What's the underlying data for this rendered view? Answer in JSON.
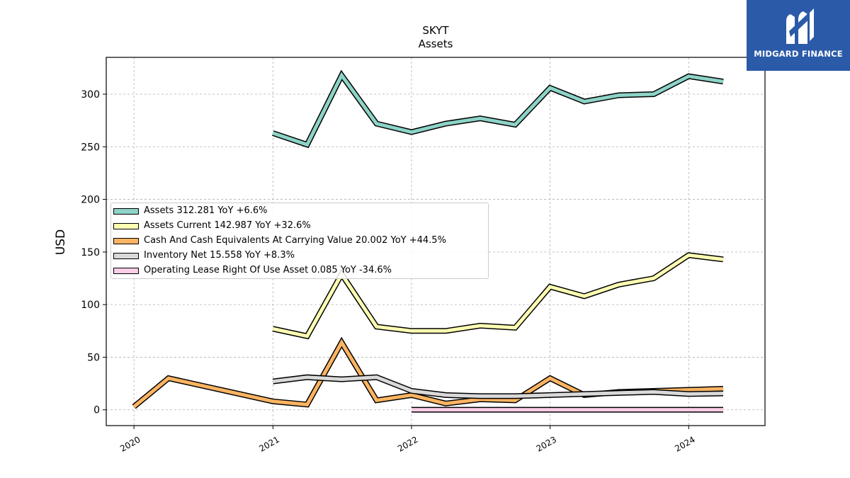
{
  "brand": {
    "name": "MIDGARD FINANCE",
    "logo_icon": "midgard-m-logo-icon",
    "color": "#2b5aa8"
  },
  "chart_data": {
    "type": "line",
    "title": "SKYT",
    "subtitle": "Assets",
    "xlabel": "",
    "ylabel": "USD",
    "x_ticks": [
      "2020",
      "2021",
      "2022",
      "2023",
      "2024"
    ],
    "y_ticks": [
      0,
      50,
      100,
      150,
      200,
      250,
      300
    ],
    "xlim": [
      "2019-10-20",
      "2024-07-20"
    ],
    "ylim": [
      -15,
      335
    ],
    "grid": true,
    "legend_position": "center-left",
    "series": [
      {
        "name": "Assets",
        "legend": "Assets  312.281 YoY +6.6%",
        "color": "#8dd3c7",
        "points": [
          [
            "2021-01-01",
            263
          ],
          [
            "2021-04-01",
            252
          ],
          [
            "2021-07-01",
            318
          ],
          [
            "2021-10-01",
            272
          ],
          [
            "2022-01-01",
            264
          ],
          [
            "2022-04-01",
            272
          ],
          [
            "2022-07-01",
            277
          ],
          [
            "2022-10-01",
            271
          ],
          [
            "2023-01-01",
            306
          ],
          [
            "2023-04-01",
            293
          ],
          [
            "2023-07-01",
            299
          ],
          [
            "2023-10-01",
            300
          ],
          [
            "2024-01-01",
            317
          ],
          [
            "2024-04-01",
            312
          ]
        ]
      },
      {
        "name": "Assets Current",
        "legend": "Assets Current  142.987 YoY +32.6%",
        "color": "#ffffb3",
        "points": [
          [
            "2021-01-01",
            77
          ],
          [
            "2021-04-01",
            70
          ],
          [
            "2021-07-01",
            129
          ],
          [
            "2021-10-01",
            79
          ],
          [
            "2022-01-01",
            75
          ],
          [
            "2022-04-01",
            75
          ],
          [
            "2022-07-01",
            80
          ],
          [
            "2022-10-01",
            78
          ],
          [
            "2023-01-01",
            117
          ],
          [
            "2023-04-01",
            108
          ],
          [
            "2023-07-01",
            119
          ],
          [
            "2023-10-01",
            125
          ],
          [
            "2024-01-01",
            147
          ],
          [
            "2024-04-01",
            143
          ]
        ]
      },
      {
        "name": "Cash And Cash Equivalents At Carrying Value",
        "legend": "Cash And Cash Equivalents At Carrying Value  20.002 YoY +44.5%",
        "color": "#fdb462",
        "points": [
          [
            "2020-01-01",
            3
          ],
          [
            "2020-04-01",
            30
          ],
          [
            "2021-01-01",
            8
          ],
          [
            "2021-04-01",
            5
          ],
          [
            "2021-07-01",
            64
          ],
          [
            "2021-10-01",
            9
          ],
          [
            "2022-01-01",
            14
          ],
          [
            "2022-04-01",
            6
          ],
          [
            "2022-07-01",
            10
          ],
          [
            "2022-10-01",
            9
          ],
          [
            "2023-01-01",
            30
          ],
          [
            "2023-04-01",
            14
          ],
          [
            "2023-07-01",
            17
          ],
          [
            "2023-10-01",
            18
          ],
          [
            "2024-01-01",
            19
          ],
          [
            "2024-04-01",
            20
          ]
        ]
      },
      {
        "name": "Inventory Net",
        "legend": "Inventory Net  15.558 YoY +8.3%",
        "color": "#d9d9d9",
        "points": [
          [
            "2021-01-01",
            27
          ],
          [
            "2021-04-01",
            31
          ],
          [
            "2021-07-01",
            29
          ],
          [
            "2021-10-01",
            31
          ],
          [
            "2022-01-01",
            18
          ],
          [
            "2022-04-01",
            14
          ],
          [
            "2022-07-01",
            13
          ],
          [
            "2022-10-01",
            13
          ],
          [
            "2023-01-01",
            14
          ],
          [
            "2023-04-01",
            15
          ],
          [
            "2023-07-01",
            16
          ],
          [
            "2023-10-01",
            17
          ],
          [
            "2024-01-01",
            15
          ],
          [
            "2024-04-01",
            15.6
          ]
        ]
      },
      {
        "name": "Operating Lease Right Of Use Asset",
        "legend": "Operating Lease Right Of Use Asset  0.085 YoY -34.6%",
        "color": "#fccde5",
        "points": [
          [
            "2022-01-01",
            0.1
          ],
          [
            "2022-04-01",
            0.1
          ],
          [
            "2022-07-01",
            0.1
          ],
          [
            "2022-10-01",
            0.1
          ],
          [
            "2023-01-01",
            0.1
          ],
          [
            "2023-04-01",
            0.1
          ],
          [
            "2023-07-01",
            0.1
          ],
          [
            "2023-10-01",
            0.1
          ],
          [
            "2024-01-01",
            0.1
          ],
          [
            "2024-04-01",
            0.085
          ]
        ]
      }
    ]
  }
}
